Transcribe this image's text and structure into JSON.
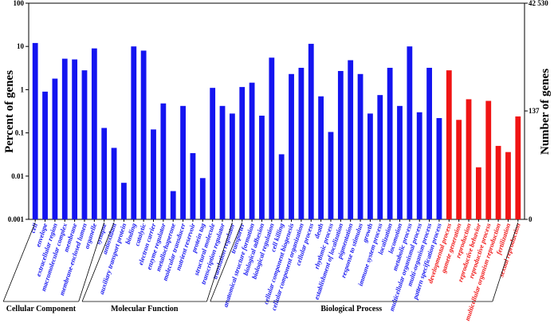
{
  "chart_data": {
    "type": "bar",
    "ylabel_left": "Percent of genes",
    "ylabel_right": "Number of genes",
    "y_scale": "log",
    "ylim": [
      0.001,
      100
    ],
    "left_ticks": [
      {
        "value": 100,
        "label": "100"
      },
      {
        "value": 10,
        "label": "10"
      },
      {
        "value": 1,
        "label": "1"
      },
      {
        "value": 0.1,
        "label": "0.1"
      },
      {
        "value": 0.01,
        "label": "0.01"
      },
      {
        "value": 0.001,
        "label": "0.001"
      }
    ],
    "right_ticks": [
      {
        "value": 100,
        "label": "42 530"
      },
      {
        "value": 0.322,
        "label": "137"
      },
      {
        "value": 0.001,
        "label": "0"
      }
    ],
    "colors": {
      "blue": "#1414f0",
      "red": "#f01414"
    },
    "categories": [
      "cell",
      "envelope",
      "extracellular region",
      "macromolecular complex",
      "membrane",
      "membrane-enclosed lumen",
      "organelle",
      "synapse",
      "antioxidant",
      "auxiliary transport protein",
      "binding",
      "catalytic",
      "electron carrier",
      "enzyme regulator",
      "metallochaperone",
      "molecular transducer",
      "nutrient reservoir",
      "protein tag",
      "structural molecule",
      "transcription regulator",
      "translation regulator",
      "transporter",
      "anatomical structure formation",
      "biological adhesion",
      "biological regulation",
      "cell killing",
      "cellular component biogenesis",
      "cellular component organization",
      "cellular process",
      "death",
      "rhythmic process",
      "establishment of localization",
      "pigmentation",
      "response to stimulus",
      "growth",
      "immune system process",
      "localization",
      "locomotion",
      "metabolic process",
      "multicellular organismal process",
      "multi-organism process",
      "pattern specification process",
      "developmental process",
      "gamete generation",
      "reproduction",
      "reproductive behavior",
      "reproductive process",
      "multicellular organism reproduction",
      "fertilization",
      "sexual reproduction"
    ],
    "values": [
      12.0,
      0.9,
      1.8,
      5.2,
      5.0,
      2.8,
      9.0,
      0.13,
      0.045,
      0.007,
      10.0,
      8.0,
      0.12,
      0.48,
      0.0045,
      0.42,
      0.034,
      0.009,
      1.1,
      0.42,
      0.28,
      1.15,
      1.45,
      0.25,
      5.5,
      0.032,
      2.3,
      3.2,
      11.5,
      0.7,
      0.105,
      2.7,
      4.8,
      2.3,
      0.28,
      0.75,
      3.2,
      0.42,
      10.0,
      0.3,
      3.2,
      0.22,
      2.8,
      0.2,
      0.6,
      0.016,
      0.55,
      0.05,
      0.036,
      0.24
    ],
    "bar_colors": [
      "blue",
      "blue",
      "blue",
      "blue",
      "blue",
      "blue",
      "blue",
      "blue",
      "blue",
      "blue",
      "blue",
      "blue",
      "blue",
      "blue",
      "blue",
      "blue",
      "blue",
      "blue",
      "blue",
      "blue",
      "blue",
      "blue",
      "blue",
      "blue",
      "blue",
      "blue",
      "blue",
      "blue",
      "blue",
      "blue",
      "blue",
      "blue",
      "blue",
      "blue",
      "blue",
      "blue",
      "blue",
      "blue",
      "blue",
      "blue",
      "blue",
      "blue",
      "red",
      "red",
      "red",
      "red",
      "red",
      "red",
      "red",
      "red"
    ],
    "groups": [
      {
        "label": "Cellular Component",
        "first": 0,
        "last": 7
      },
      {
        "label": "Molecular Function",
        "first": 8,
        "last": 20
      },
      {
        "label": "Biological Process",
        "first": 21,
        "last": 49
      }
    ]
  }
}
